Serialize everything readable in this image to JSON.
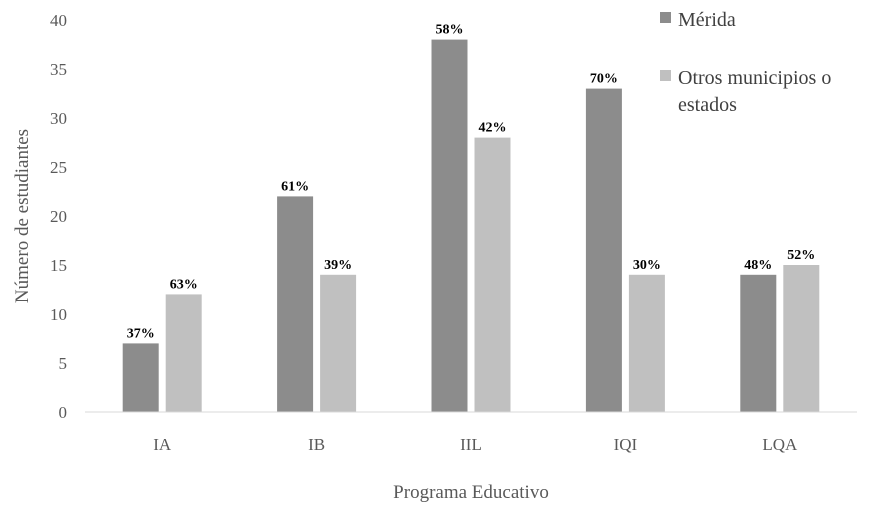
{
  "chart_data": {
    "type": "bar",
    "title": "",
    "xlabel": "Programa Educativo",
    "ylabel": "Número de estudiantes",
    "ylim": [
      0,
      40
    ],
    "yticks": [
      0,
      5,
      10,
      15,
      20,
      25,
      30,
      35,
      40
    ],
    "grid": false,
    "legend_position": "top-right",
    "categories": [
      "IA",
      "IB",
      "IIL",
      "IQI",
      "LQA"
    ],
    "series": [
      {
        "name": "Mérida",
        "color": "#8c8c8c",
        "values": [
          7,
          22,
          38,
          33,
          14
        ],
        "labels": [
          "37%",
          "61%",
          "58%",
          "70%",
          "48%"
        ]
      },
      {
        "name": "Otros municipios o estados",
        "color": "#c0c0c0",
        "values": [
          12,
          14,
          28,
          14,
          15
        ],
        "labels": [
          "63%",
          "39%",
          "42%",
          "30%",
          "52%"
        ]
      }
    ]
  }
}
